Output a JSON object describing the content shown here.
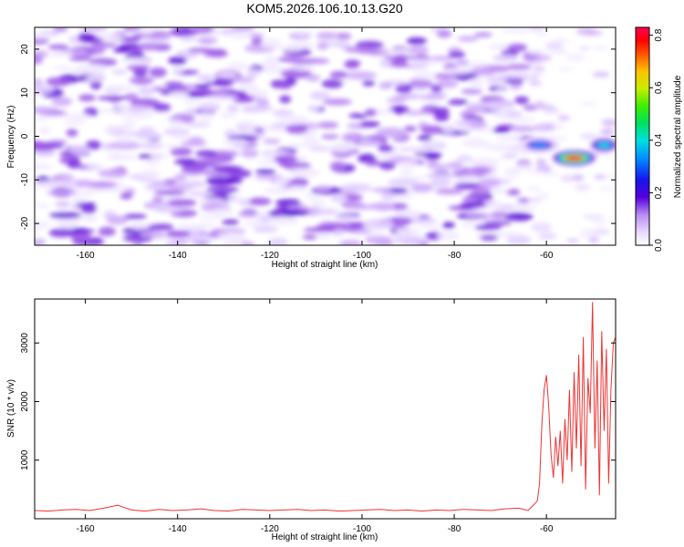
{
  "figure": {
    "title": "KOM5.2026.106.10.13.G20"
  },
  "chart_data": [
    {
      "type": "heatmap",
      "title": "",
      "xlabel": "Height of straight line (km)",
      "ylabel": "Frequency (Hz)",
      "xlim": [
        -171,
        -45
      ],
      "ylim": [
        -25,
        25
      ],
      "xticks": [
        -160,
        -140,
        -120,
        -100,
        -80,
        -60
      ],
      "yticks": [
        -20,
        -10,
        0,
        10,
        20
      ],
      "colorbar": {
        "label": "Normalized spectral amplitude",
        "range": [
          0.0,
          0.83
        ],
        "ticks": [
          0.0,
          0.2,
          0.4,
          0.6,
          0.8
        ],
        "tick_labels": [
          "0.0",
          "0.2",
          "0.4",
          "0.6",
          "0.8"
        ]
      },
      "background_noise_level": 0.12,
      "notable_features": [
        {
          "x_range": [
            -65,
            -58
          ],
          "frequency_hz": -2,
          "peak_value": 0.35
        },
        {
          "x_range": [
            -58,
            -50
          ],
          "frequency_hz": -5,
          "peak_value": 0.8
        },
        {
          "x_range": [
            -50,
            -45
          ],
          "frequency_hz": -2,
          "peak_value": 0.45
        }
      ]
    },
    {
      "type": "line",
      "title": "",
      "xlabel": "Height of straight line (km)",
      "ylabel": "SNR (10 * v/v)",
      "xlim": [
        -171,
        -45
      ],
      "ylim": [
        0,
        3750
      ],
      "xticks": [
        -160,
        -140,
        -120,
        -100,
        -80,
        -60
      ],
      "yticks": [
        1000,
        2000,
        3000
      ],
      "series": [
        {
          "name": "SNR",
          "color": "#ee3333",
          "x": [
            -171,
            -168,
            -165,
            -162,
            -159,
            -156,
            -153,
            -150,
            -147,
            -144,
            -141,
            -138,
            -135,
            -132,
            -129,
            -126,
            -123,
            -120,
            -117,
            -114,
            -111,
            -108,
            -105,
            -102,
            -99,
            -96,
            -93,
            -90,
            -87,
            -84,
            -81,
            -78,
            -75,
            -72,
            -69,
            -66,
            -64,
            -63,
            -62,
            -61.5,
            -61,
            -60.5,
            -60,
            -59.5,
            -59,
            -58.5,
            -58,
            -57.5,
            -57,
            -56.5,
            -56,
            -55.5,
            -55,
            -54.5,
            -54,
            -53.5,
            -53,
            -52.5,
            -52,
            -51.5,
            -51,
            -50.5,
            -50,
            -49.5,
            -49,
            -48.5,
            -48,
            -47.5,
            -47,
            -46.5,
            -46,
            -45.5,
            -45
          ],
          "values": [
            140,
            130,
            150,
            160,
            140,
            180,
            230,
            150,
            130,
            160,
            140,
            150,
            170,
            140,
            130,
            160,
            150,
            140,
            150,
            160,
            140,
            150,
            130,
            140,
            150,
            160,
            140,
            150,
            130,
            150,
            140,
            160,
            150,
            140,
            170,
            180,
            140,
            220,
            300,
            600,
            1600,
            2200,
            2450,
            1900,
            1100,
            700,
            1400,
            900,
            1500,
            600,
            1700,
            1000,
            2200,
            800,
            2500,
            1200,
            2800,
            900,
            3100,
            500,
            2400,
            1800,
            3700,
            1200,
            2700,
            400,
            3200,
            1500,
            2900,
            600,
            2200,
            3000,
            3100
          ]
        }
      ]
    }
  ]
}
